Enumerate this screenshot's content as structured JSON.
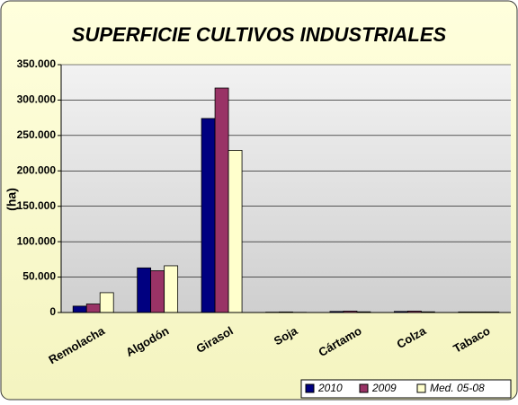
{
  "chart_data": {
    "type": "bar",
    "title": "SUPERFICIE CULTIVOS INDUSTRIALES",
    "y_label": "(ha)",
    "categories": [
      "Remolacha",
      "Algodón",
      "Girasol",
      "Soja",
      "Cártamo",
      "Colza",
      "Tabaco"
    ],
    "series": [
      {
        "name": "2010",
        "color": "#000080",
        "values": [
          9000,
          63000,
          274000,
          500,
          1500,
          1500,
          800
        ]
      },
      {
        "name": "2009",
        "color": "#993366",
        "values": [
          12000,
          59000,
          317000,
          800,
          2000,
          2000,
          800
        ]
      },
      {
        "name": "Med. 05-08",
        "color": "#ffffcc",
        "values": [
          28000,
          66000,
          229000,
          300,
          1000,
          1000,
          800
        ]
      }
    ],
    "ylim": [
      0,
      350000
    ],
    "yticks": [
      0,
      {
        "value": 50000,
        "label": "50.000"
      },
      {
        "value": 100000,
        "label": "100.000"
      },
      {
        "value": 150000,
        "label": "150.000"
      },
      {
        "value": 200000,
        "label": "200.000"
      },
      {
        "value": 250000,
        "label": "250.000"
      },
      {
        "value": 300000,
        "label": "300.000"
      },
      {
        "value": 350000,
        "label": "350.000"
      }
    ],
    "grid": true,
    "legend": "bottom-right"
  }
}
